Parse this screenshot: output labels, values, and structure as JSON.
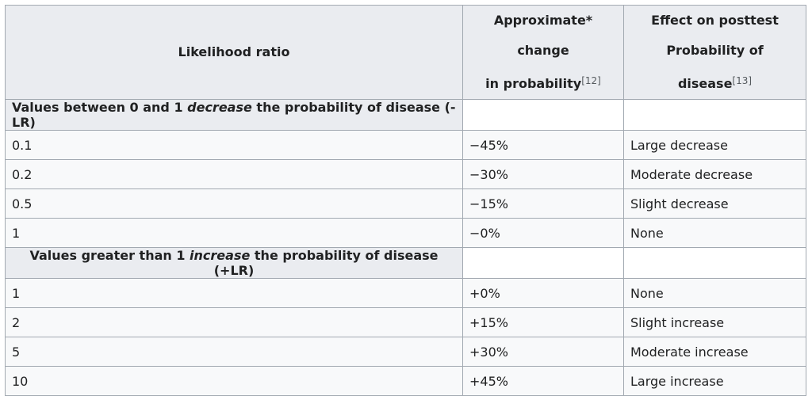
{
  "header": {
    "col1": "Likelihood ratio",
    "col2_line1": "Approximate* change",
    "col2_line2": "in probability",
    "col2_ref": "[12]",
    "col3_line1": "Effect on posttest",
    "col3_line2": "Probability of disease",
    "col3_ref": "[13]"
  },
  "sections": [
    {
      "pre": "Values between 0 and 1 ",
      "em": "decrease",
      "post": " the probability of disease (-LR)",
      "rows": [
        {
          "lr": "0.1",
          "change": "−45%",
          "effect": "Large decrease"
        },
        {
          "lr": "0.2",
          "change": "−30%",
          "effect": "Moderate decrease"
        },
        {
          "lr": "0.5",
          "change": "−15%",
          "effect": "Slight decrease"
        },
        {
          "lr": "1",
          "change": "−0%",
          "effect": "None"
        }
      ]
    },
    {
      "pre": "Values greater than 1 ",
      "em": "increase",
      "post": " the probability of disease (+LR)",
      "rows": [
        {
          "lr": "1",
          "change": "+0%",
          "effect": "None"
        },
        {
          "lr": "2",
          "change": "+15%",
          "effect": "Slight increase"
        },
        {
          "lr": "5",
          "change": "+30%",
          "effect": "Moderate increase"
        },
        {
          "lr": "10",
          "change": "+45%",
          "effect": "Large increase"
        }
      ]
    }
  ]
}
